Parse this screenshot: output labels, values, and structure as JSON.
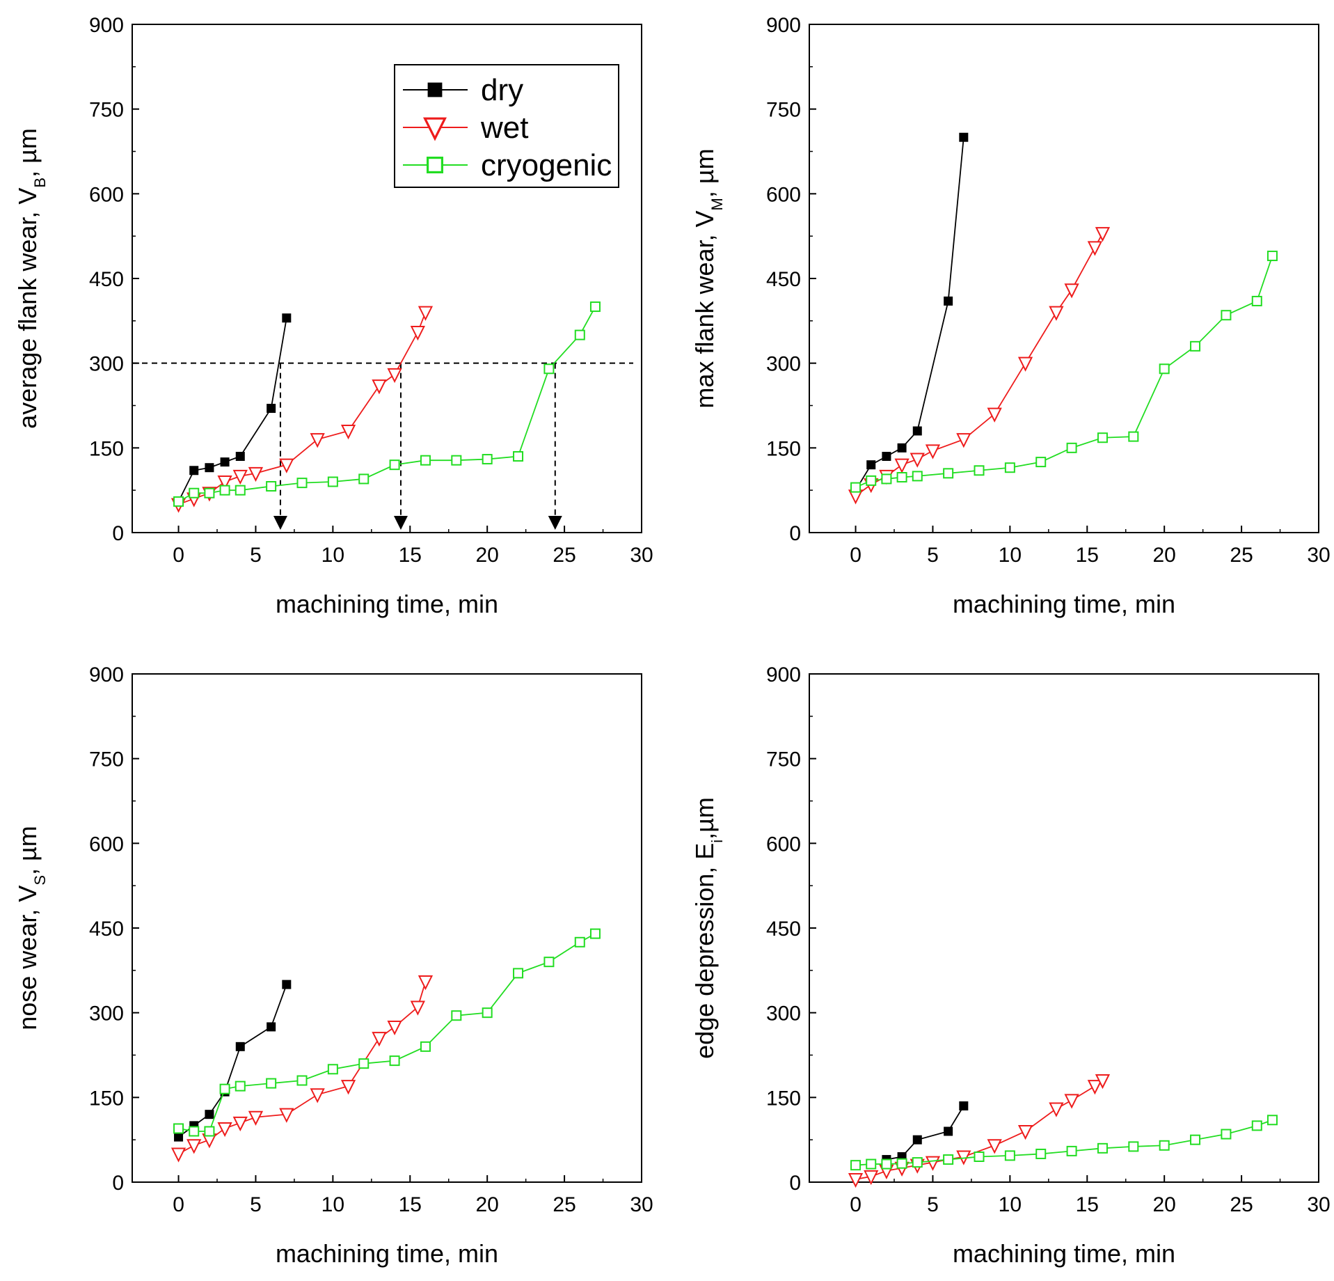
{
  "chart_data": [
    {
      "type": "line",
      "panel": "top-left",
      "ylabel_main": "average flank wear, V",
      "ylabel_sub": "B",
      "ylabel_unit": ", µm",
      "xlabel": "machining time, min",
      "xlim": [
        -3,
        30
      ],
      "ylim": [
        0,
        900
      ],
      "xticks": [
        "0",
        "5",
        "10",
        "15",
        "20",
        "25",
        "30"
      ],
      "yticks": [
        "0",
        "150",
        "300",
        "450",
        "600",
        "750",
        "900"
      ],
      "threshold": 300,
      "arrows_x": [
        6.6,
        14.4,
        24.4
      ],
      "legend": {
        "position": "top-right",
        "entries": [
          {
            "label": "dry",
            "series": "dry"
          },
          {
            "label": "wet",
            "series": "wet"
          },
          {
            "label": "cryogenic",
            "series": "cryogenic"
          }
        ]
      },
      "series": [
        {
          "name": "dry",
          "x": [
            0,
            1,
            2,
            3,
            4,
            6,
            7
          ],
          "y": [
            55,
            110,
            115,
            125,
            135,
            220,
            380
          ]
        },
        {
          "name": "wet",
          "x": [
            0,
            1,
            2,
            3,
            4,
            5,
            7,
            9,
            11,
            13,
            14,
            15.5,
            16
          ],
          "y": [
            50,
            60,
            70,
            90,
            100,
            105,
            120,
            165,
            180,
            260,
            280,
            355,
            390
          ]
        },
        {
          "name": "cryogenic",
          "x": [
            0,
            1,
            2,
            3,
            4,
            6,
            8,
            10,
            12,
            14,
            16,
            18,
            20,
            22,
            24,
            26,
            27
          ],
          "y": [
            55,
            70,
            70,
            75,
            75,
            82,
            88,
            90,
            95,
            120,
            128,
            128,
            130,
            135,
            290,
            350,
            400
          ]
        }
      ]
    },
    {
      "type": "line",
      "panel": "top-right",
      "ylabel_main": "max flank wear, V",
      "ylabel_sub": "M",
      "ylabel_unit": ", µm",
      "xlabel": "machining time, min",
      "xlim": [
        -3,
        30
      ],
      "ylim": [
        0,
        900
      ],
      "xticks": [
        "0",
        "5",
        "10",
        "15",
        "20",
        "25",
        "30"
      ],
      "yticks": [
        "0",
        "150",
        "300",
        "450",
        "600",
        "750",
        "900"
      ],
      "series": [
        {
          "name": "dry",
          "x": [
            0,
            1,
            2,
            3,
            4,
            6,
            7
          ],
          "y": [
            75,
            120,
            135,
            150,
            180,
            410,
            700
          ]
        },
        {
          "name": "wet",
          "x": [
            0,
            1,
            2,
            3,
            4,
            5,
            7,
            9,
            11,
            13,
            14,
            15.5,
            16
          ],
          "y": [
            65,
            85,
            100,
            120,
            130,
            145,
            165,
            210,
            300,
            390,
            430,
            505,
            530
          ]
        },
        {
          "name": "cryogenic",
          "x": [
            0,
            1,
            2,
            3,
            4,
            6,
            8,
            10,
            12,
            14,
            16,
            18,
            20,
            22,
            24,
            26,
            27
          ],
          "y": [
            80,
            92,
            95,
            98,
            100,
            105,
            110,
            115,
            125,
            150,
            168,
            170,
            290,
            330,
            385,
            410,
            490
          ]
        }
      ]
    },
    {
      "type": "line",
      "panel": "bottom-left",
      "ylabel_main": "nose wear, V",
      "ylabel_sub": "S",
      "ylabel_unit": ", µm",
      "xlabel": "machining time, min",
      "xlim": [
        -3,
        30
      ],
      "ylim": [
        0,
        900
      ],
      "xticks": [
        "0",
        "5",
        "10",
        "15",
        "20",
        "25",
        "30"
      ],
      "yticks": [
        "0",
        "150",
        "300",
        "450",
        "600",
        "750",
        "900"
      ],
      "series": [
        {
          "name": "dry",
          "x": [
            0,
            1,
            2,
            3,
            4,
            6,
            7
          ],
          "y": [
            80,
            100,
            120,
            160,
            240,
            275,
            350
          ]
        },
        {
          "name": "wet",
          "x": [
            0,
            1,
            2,
            3,
            4,
            5,
            7,
            9,
            11,
            13,
            14,
            15.5,
            16
          ],
          "y": [
            50,
            65,
            75,
            95,
            105,
            115,
            120,
            155,
            170,
            255,
            275,
            310,
            355
          ]
        },
        {
          "name": "cryogenic",
          "x": [
            0,
            1,
            2,
            3,
            4,
            6,
            8,
            10,
            12,
            14,
            16,
            18,
            20,
            22,
            24,
            26,
            27
          ],
          "y": [
            95,
            90,
            90,
            165,
            170,
            175,
            180,
            200,
            210,
            215,
            240,
            295,
            300,
            370,
            390,
            425,
            440
          ]
        }
      ]
    },
    {
      "type": "line",
      "panel": "bottom-right",
      "ylabel_main": "edge depression, E",
      "ylabel_sub": "i",
      "ylabel_unit": ",µm",
      "xlabel": "machining time, min",
      "xlim": [
        -3,
        30
      ],
      "ylim": [
        0,
        900
      ],
      "xticks": [
        "0",
        "5",
        "10",
        "15",
        "20",
        "25",
        "30"
      ],
      "yticks": [
        "0",
        "150",
        "300",
        "450",
        "600",
        "750",
        "900"
      ],
      "series": [
        {
          "name": "dry",
          "x": [
            2,
            3,
            4,
            6,
            7
          ],
          "y": [
            40,
            45,
            75,
            90,
            135
          ]
        },
        {
          "name": "wet",
          "x": [
            0,
            1,
            2,
            3,
            4,
            5,
            7,
            9,
            11,
            13,
            14,
            15.5,
            16
          ],
          "y": [
            5,
            10,
            20,
            25,
            30,
            35,
            45,
            65,
            90,
            130,
            145,
            170,
            180
          ]
        },
        {
          "name": "cryogenic",
          "x": [
            0,
            1,
            2,
            3,
            4,
            6,
            8,
            10,
            12,
            14,
            16,
            18,
            20,
            22,
            24,
            26,
            27
          ],
          "y": [
            30,
            32,
            32,
            33,
            35,
            40,
            45,
            47,
            50,
            55,
            60,
            63,
            65,
            75,
            85,
            100,
            110
          ]
        }
      ]
    }
  ],
  "series_styles": {
    "dry": {
      "color": "#000000",
      "marker": "filled-square"
    },
    "wet": {
      "color": "#ee1c1c",
      "marker": "open-triangle-down"
    },
    "cryogenic": {
      "color": "#22dd22",
      "marker": "open-square"
    }
  },
  "threshold_color": "#000000"
}
